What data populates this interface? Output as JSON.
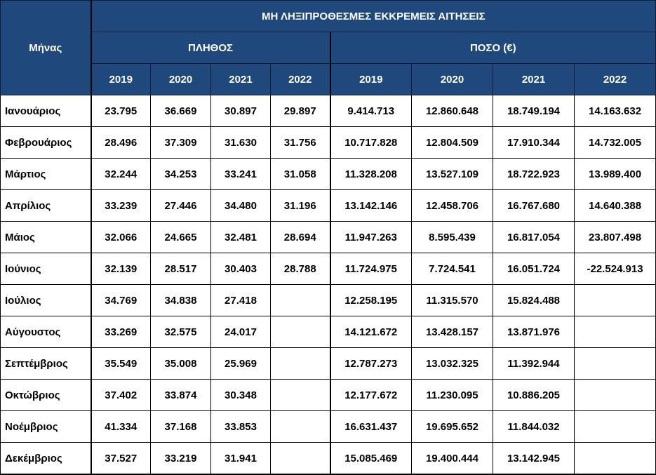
{
  "header": {
    "month_label": "Μήνας",
    "title": "ΜΗ ΛΗΞΙΠΡΟΘΕΣΜΕΣ ΕΚΚΡΕΜΕΙΣ ΑΙΤΗΣΕΙΣ",
    "count_group": "ΠΛΗΘΟΣ",
    "amount_group": "ΠΟΣΟ (€)",
    "count_years": [
      "2019",
      "2020",
      "2021",
      "2022"
    ],
    "amount_years": [
      "2019",
      "2020",
      "2021",
      "2022"
    ]
  },
  "rows": [
    {
      "month": "Ιανουάριος",
      "count": [
        "23.795",
        "36.669",
        "30.897",
        "29.897"
      ],
      "amount": [
        "9.414.713",
        "12.860.648",
        "18.749.194",
        "14.163.632"
      ]
    },
    {
      "month": "Φεβρουάριος",
      "count": [
        "28.496",
        "37.309",
        "31.630",
        "31.756"
      ],
      "amount": [
        "10.717.828",
        "12.804.509",
        "17.910.344",
        "14.732.005"
      ]
    },
    {
      "month": "Μάρτιος",
      "count": [
        "32.244",
        "34.253",
        "33.241",
        "31.058"
      ],
      "amount": [
        "11.328.208",
        "13.527.109",
        "18.722.923",
        "13.989.400"
      ]
    },
    {
      "month": "Απρίλιος",
      "count": [
        "33.239",
        "27.446",
        "34.480",
        "31.196"
      ],
      "amount": [
        "13.142.146",
        "12.458.706",
        "16.767.680",
        "14.640.388"
      ]
    },
    {
      "month": "Μάιος",
      "count": [
        "32.066",
        "24.665",
        "32.481",
        "28.694"
      ],
      "amount": [
        "11.947.263",
        "8.595.439",
        "16.817.054",
        "23.807.498"
      ]
    },
    {
      "month": "Ιούνιος",
      "count": [
        "32.139",
        "28.517",
        "30.403",
        "28.788"
      ],
      "amount": [
        "11.724.975",
        "7.724.541",
        "16.051.724",
        "-22.524.913"
      ]
    },
    {
      "month": "Ιούλιος",
      "count": [
        "34.769",
        "34.838",
        "27.418",
        ""
      ],
      "amount": [
        "12.258.195",
        "11.315.570",
        "15.824.488",
        ""
      ]
    },
    {
      "month": "Αύγουστος",
      "count": [
        "33.269",
        "32.575",
        "24.017",
        ""
      ],
      "amount": [
        "14.121.672",
        "13.428.157",
        "13.871.976",
        ""
      ]
    },
    {
      "month": "Σεπτέμβριος",
      "count": [
        "35.549",
        "35.008",
        "25.969",
        ""
      ],
      "amount": [
        "12.787.273",
        "13.032.325",
        "11.392.944",
        ""
      ]
    },
    {
      "month": "Οκτώβριος",
      "count": [
        "37.402",
        "33.874",
        "30.348",
        ""
      ],
      "amount": [
        "12.177.672",
        "11.230.095",
        "10.886.205",
        ""
      ]
    },
    {
      "month": "Νοέμβριος",
      "count": [
        "41.334",
        "37.168",
        "33.853",
        ""
      ],
      "amount": [
        "16.631.437",
        "19.695.652",
        "11.844.032",
        ""
      ]
    },
    {
      "month": "Δεκέμβριος",
      "count": [
        "37.527",
        "33.219",
        "31.941",
        ""
      ],
      "amount": [
        "15.085.469",
        "19.400.444",
        "13.142.945",
        ""
      ]
    }
  ]
}
